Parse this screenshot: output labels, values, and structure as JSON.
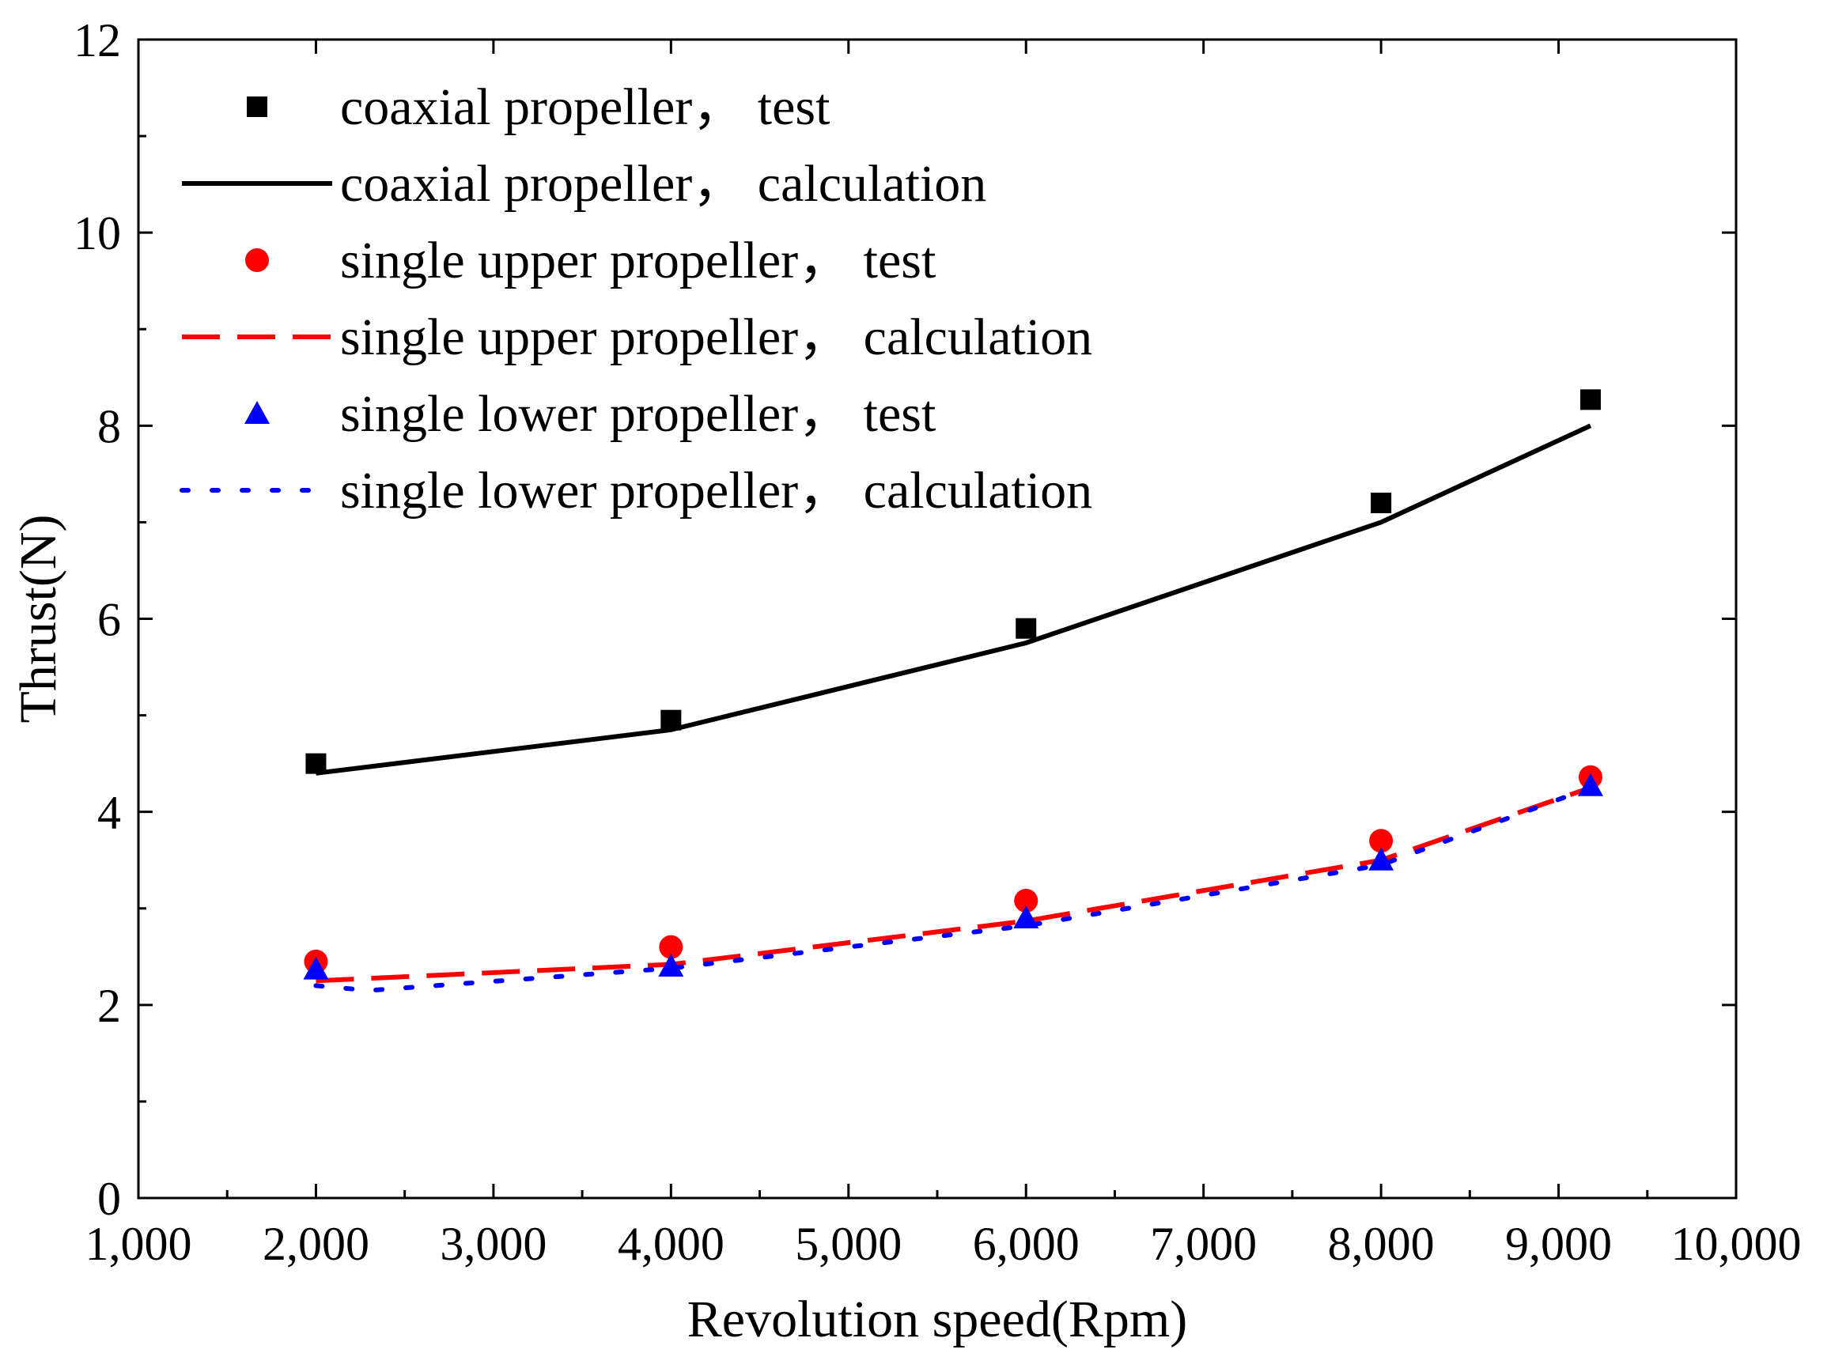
{
  "chart_data": {
    "type": "line",
    "title": "",
    "xlabel": "Revolution speed(Rpm)",
    "ylabel": "Thrust(N)",
    "xlim": [
      1000,
      10000
    ],
    "ylim": [
      0,
      12
    ],
    "x_ticks": [
      1000,
      2000,
      3000,
      4000,
      5000,
      6000,
      7000,
      8000,
      9000,
      10000
    ],
    "x_tick_labels": [
      "1,000",
      "2,000",
      "3,000",
      "4,000",
      "5,000",
      "6,000",
      "7,000",
      "8,000",
      "9,000",
      "10,000"
    ],
    "y_ticks": [
      0,
      2,
      4,
      6,
      8,
      10,
      12
    ],
    "y_tick_labels": [
      "0",
      "2",
      "4",
      "6",
      "8",
      "10",
      "12"
    ],
    "legend_position": "top-left",
    "series": [
      {
        "name": "coaxial propeller， test",
        "kind": "marker",
        "marker": "square",
        "color": "#000000",
        "x": [
          2000,
          4000,
          6000,
          8000,
          9180
        ],
        "y": [
          4.5,
          4.95,
          5.9,
          7.2,
          8.27
        ]
      },
      {
        "name": "coaxial propeller， calculation",
        "kind": "line",
        "dash": "solid",
        "color": "#000000",
        "x": [
          2000,
          4000,
          6000,
          8000,
          9180
        ],
        "y": [
          4.4,
          4.85,
          5.75,
          7.0,
          8.0
        ]
      },
      {
        "name": "single upper propeller， test",
        "kind": "marker",
        "marker": "circle",
        "color": "#ff0000",
        "x": [
          2000,
          4000,
          6000,
          8000,
          9180
        ],
        "y": [
          2.45,
          2.6,
          3.08,
          3.7,
          4.36
        ]
      },
      {
        "name": "single upper propeller， calculation",
        "kind": "line",
        "dash": "dashed",
        "color": "#ff0000",
        "x": [
          2000,
          4000,
          6000,
          8000,
          9180
        ],
        "y": [
          2.25,
          2.42,
          2.87,
          3.5,
          4.25
        ]
      },
      {
        "name": "single lower propeller， test",
        "kind": "marker",
        "marker": "triangle",
        "color": "#0000ff",
        "x": [
          2000,
          4000,
          6000,
          8000,
          9180
        ],
        "y": [
          2.37,
          2.4,
          2.9,
          3.5,
          4.27
        ]
      },
      {
        "name": "single lower propeller， calculation",
        "kind": "line",
        "dash": "dotted",
        "color": "#0000ff",
        "x": [
          2000,
          2300,
          4000,
          6000,
          8000,
          9180
        ],
        "y": [
          2.2,
          2.15,
          2.38,
          2.82,
          3.45,
          4.25
        ]
      }
    ]
  }
}
